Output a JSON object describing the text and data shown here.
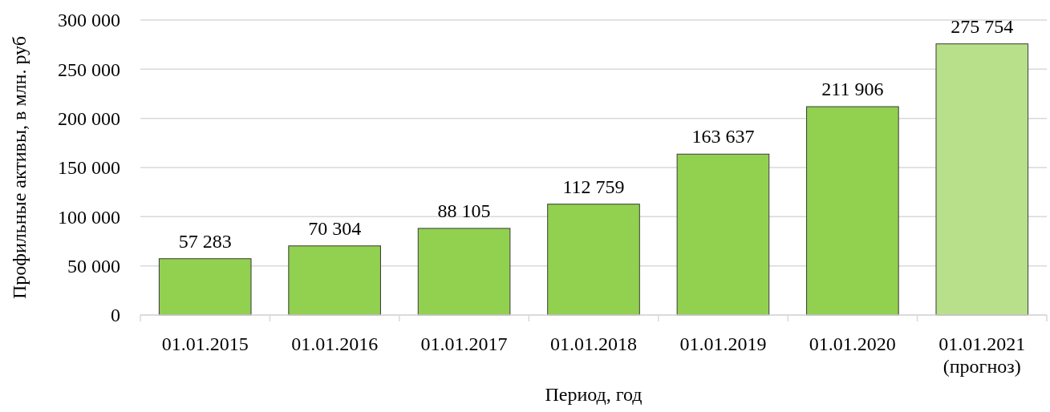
{
  "chart_data": {
    "type": "bar",
    "xlabel": "Период, год",
    "ylabel": "Профильные активы, в млн. руб",
    "categories": [
      "01.01.2015",
      "01.01.2016",
      "01.01.2017",
      "01.01.2018",
      "01.01.2019",
      "01.01.2020",
      "01.01.2021\n(прогноз)"
    ],
    "values": [
      57283,
      70304,
      88105,
      112759,
      163637,
      211906,
      275754
    ],
    "colors": [
      "#92d050",
      "#92d050",
      "#92d050",
      "#92d050",
      "#92d050",
      "#92d050",
      "#b8e08a"
    ],
    "value_labels": [
      "57 283",
      "70 304",
      "88 105",
      "112 759",
      "163 637",
      "211 906",
      "275 754"
    ],
    "ylim": [
      0,
      300000
    ],
    "yticks": [
      0,
      {
        "value": 50000,
        "label": "50 000"
      },
      {
        "value": 100000,
        "label": "100 000"
      },
      {
        "value": 150000,
        "label": "150 000"
      },
      {
        "value": 200000,
        "label": "200 000"
      },
      {
        "value": 250000,
        "label": "250 000"
      },
      {
        "value": 300000,
        "label": "300 000"
      }
    ],
    "grid": "y"
  }
}
